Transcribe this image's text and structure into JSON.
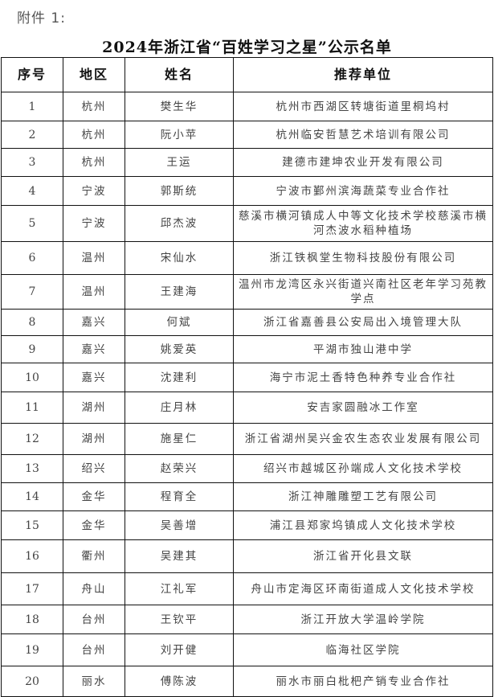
{
  "attachment_label": "附件 1:",
  "title": "2024年浙江省“百姓学习之星”公示名单",
  "table": {
    "headers": [
      "序号",
      "地区",
      "姓名",
      "推荐单位"
    ],
    "rows": [
      [
        "1",
        "杭州",
        "樊生华",
        "杭州市西湖区转塘街道里桐坞村"
      ],
      [
        "2",
        "杭州",
        "阮小苹",
        "杭州临安哲慧艺术培训有限公司"
      ],
      [
        "3",
        "杭州",
        "王运",
        "建德市建坤农业开发有限公司"
      ],
      [
        "4",
        "宁波",
        "郭斯统",
        "宁波市鄞州滨海蔬菜专业合作社"
      ],
      [
        "5",
        "宁波",
        "邱杰波",
        "慈溪市横河镇成人中等文化技术学校慈溪市横河杰波水稻种植场"
      ],
      [
        "6",
        "温州",
        "宋仙水",
        "浙江铁枫堂生物科技股份有限公司"
      ],
      [
        "7",
        "温州",
        "王建海",
        "温州市龙湾区永兴街道兴南社区老年学习苑教学点"
      ],
      [
        "8",
        "嘉兴",
        "何斌",
        "浙江省嘉善县公安局出入境管理大队"
      ],
      [
        "9",
        "嘉兴",
        "姚爱英",
        "平湖市独山港中学"
      ],
      [
        "10",
        "嘉兴",
        "沈建利",
        "海宁市泥土香特色种养专业合作社"
      ],
      [
        "11",
        "湖州",
        "庄月林",
        "安吉家圆融冰工作室"
      ],
      [
        "12",
        "湖州",
        "施星仁",
        "浙江省湖州吴兴金农生态农业发展有限公司"
      ],
      [
        "13",
        "绍兴",
        "赵荣兴",
        "绍兴市越城区孙端成人文化技术学校"
      ],
      [
        "14",
        "金华",
        "程育全",
        "浙江神雕雕塑工艺有限公司"
      ],
      [
        "15",
        "金华",
        "吴善增",
        "浦江县郑家坞镇成人文化技术学校"
      ],
      [
        "16",
        "衢州",
        "吴建其",
        "浙江省开化县文联"
      ],
      [
        "17",
        "舟山",
        "江礼军",
        "舟山市定海区环南街道成人文化技术学校"
      ],
      [
        "18",
        "台州",
        "王钦平",
        "浙江开放大学温岭学院"
      ],
      [
        "19",
        "台州",
        "刘开健",
        "临海社区学院"
      ],
      [
        "20",
        "丽水",
        "傅陈波",
        "丽水市丽白枇杷产销专业合作社"
      ]
    ]
  }
}
